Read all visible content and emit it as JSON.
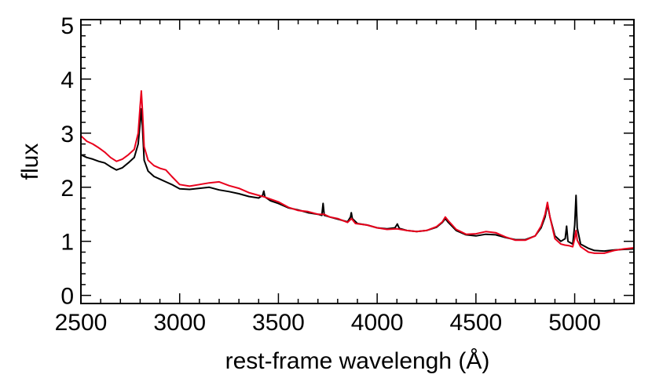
{
  "chart_data": {
    "type": "line",
    "title": "",
    "xlabel": "rest-frame wavelengh (Å)",
    "ylabel": "flux",
    "xlim": [
      2500,
      5300
    ],
    "ylim": [
      -0.15,
      5.1
    ],
    "xticks": [
      2500,
      3000,
      3500,
      4000,
      4500,
      5000
    ],
    "yticks": [
      0,
      1,
      2,
      3,
      4,
      5
    ],
    "x_minor_step": 100,
    "y_minor_step": 0.2,
    "grid": false,
    "legend": "none",
    "series": [
      {
        "name": "black spectrum",
        "color": "#000000",
        "points": [
          [
            2500,
            2.6
          ],
          [
            2530,
            2.55
          ],
          [
            2560,
            2.52
          ],
          [
            2590,
            2.48
          ],
          [
            2620,
            2.45
          ],
          [
            2650,
            2.38
          ],
          [
            2680,
            2.32
          ],
          [
            2710,
            2.36
          ],
          [
            2740,
            2.45
          ],
          [
            2770,
            2.55
          ],
          [
            2790,
            2.8
          ],
          [
            2800,
            3.2
          ],
          [
            2806,
            3.45
          ],
          [
            2812,
            3.1
          ],
          [
            2820,
            2.5
          ],
          [
            2840,
            2.3
          ],
          [
            2870,
            2.2
          ],
          [
            2900,
            2.15
          ],
          [
            2930,
            2.1
          ],
          [
            2960,
            2.05
          ],
          [
            3000,
            1.97
          ],
          [
            3050,
            1.96
          ],
          [
            3100,
            1.98
          ],
          [
            3150,
            2.0
          ],
          [
            3200,
            1.95
          ],
          [
            3250,
            1.92
          ],
          [
            3300,
            1.88
          ],
          [
            3350,
            1.83
          ],
          [
            3400,
            1.8
          ],
          [
            3420,
            1.85
          ],
          [
            3426,
            1.93
          ],
          [
            3432,
            1.82
          ],
          [
            3460,
            1.75
          ],
          [
            3500,
            1.7
          ],
          [
            3550,
            1.62
          ],
          [
            3600,
            1.58
          ],
          [
            3650,
            1.53
          ],
          [
            3700,
            1.5
          ],
          [
            3720,
            1.48
          ],
          [
            3726,
            1.7
          ],
          [
            3732,
            1.48
          ],
          [
            3760,
            1.45
          ],
          [
            3800,
            1.41
          ],
          [
            3850,
            1.36
          ],
          [
            3865,
            1.45
          ],
          [
            3869,
            1.53
          ],
          [
            3874,
            1.42
          ],
          [
            3900,
            1.33
          ],
          [
            3950,
            1.3
          ],
          [
            4000,
            1.25
          ],
          [
            4050,
            1.23
          ],
          [
            4090,
            1.25
          ],
          [
            4102,
            1.32
          ],
          [
            4112,
            1.24
          ],
          [
            4150,
            1.2
          ],
          [
            4200,
            1.18
          ],
          [
            4250,
            1.2
          ],
          [
            4300,
            1.26
          ],
          [
            4330,
            1.35
          ],
          [
            4345,
            1.42
          ],
          [
            4360,
            1.35
          ],
          [
            4400,
            1.2
          ],
          [
            4450,
            1.12
          ],
          [
            4500,
            1.1
          ],
          [
            4550,
            1.13
          ],
          [
            4600,
            1.12
          ],
          [
            4650,
            1.07
          ],
          [
            4700,
            1.03
          ],
          [
            4750,
            1.03
          ],
          [
            4800,
            1.1
          ],
          [
            4830,
            1.25
          ],
          [
            4850,
            1.45
          ],
          [
            4862,
            1.68
          ],
          [
            4875,
            1.45
          ],
          [
            4900,
            1.1
          ],
          [
            4930,
            1.0
          ],
          [
            4952,
            1.05
          ],
          [
            4959,
            1.28
          ],
          [
            4966,
            1.0
          ],
          [
            4990,
            0.95
          ],
          [
            5000,
            1.3
          ],
          [
            5007,
            1.85
          ],
          [
            5013,
            1.25
          ],
          [
            5030,
            0.95
          ],
          [
            5070,
            0.87
          ],
          [
            5100,
            0.83
          ],
          [
            5150,
            0.82
          ],
          [
            5200,
            0.84
          ],
          [
            5250,
            0.85
          ],
          [
            5300,
            0.86
          ]
        ]
      },
      {
        "name": "red spectrum",
        "color": "#e8001c",
        "points": [
          [
            2500,
            2.95
          ],
          [
            2530,
            2.85
          ],
          [
            2560,
            2.8
          ],
          [
            2590,
            2.73
          ],
          [
            2620,
            2.65
          ],
          [
            2650,
            2.55
          ],
          [
            2680,
            2.48
          ],
          [
            2710,
            2.52
          ],
          [
            2740,
            2.6
          ],
          [
            2770,
            2.7
          ],
          [
            2790,
            3.0
          ],
          [
            2800,
            3.5
          ],
          [
            2806,
            3.78
          ],
          [
            2812,
            3.4
          ],
          [
            2820,
            2.75
          ],
          [
            2840,
            2.5
          ],
          [
            2870,
            2.4
          ],
          [
            2900,
            2.35
          ],
          [
            2930,
            2.32
          ],
          [
            2960,
            2.2
          ],
          [
            3000,
            2.05
          ],
          [
            3050,
            2.02
          ],
          [
            3100,
            2.05
          ],
          [
            3150,
            2.08
          ],
          [
            3200,
            2.1
          ],
          [
            3250,
            2.03
          ],
          [
            3300,
            1.98
          ],
          [
            3350,
            1.9
          ],
          [
            3400,
            1.85
          ],
          [
            3430,
            1.82
          ],
          [
            3460,
            1.78
          ],
          [
            3500,
            1.73
          ],
          [
            3550,
            1.63
          ],
          [
            3600,
            1.57
          ],
          [
            3650,
            1.55
          ],
          [
            3700,
            1.5
          ],
          [
            3730,
            1.5
          ],
          [
            3760,
            1.45
          ],
          [
            3800,
            1.42
          ],
          [
            3850,
            1.35
          ],
          [
            3870,
            1.42
          ],
          [
            3890,
            1.33
          ],
          [
            3950,
            1.3
          ],
          [
            4000,
            1.25
          ],
          [
            4050,
            1.22
          ],
          [
            4100,
            1.23
          ],
          [
            4150,
            1.2
          ],
          [
            4200,
            1.18
          ],
          [
            4250,
            1.2
          ],
          [
            4300,
            1.27
          ],
          [
            4330,
            1.36
          ],
          [
            4345,
            1.45
          ],
          [
            4360,
            1.38
          ],
          [
            4400,
            1.22
          ],
          [
            4450,
            1.13
          ],
          [
            4500,
            1.14
          ],
          [
            4550,
            1.18
          ],
          [
            4600,
            1.16
          ],
          [
            4650,
            1.08
          ],
          [
            4700,
            1.02
          ],
          [
            4750,
            1.02
          ],
          [
            4800,
            1.1
          ],
          [
            4830,
            1.28
          ],
          [
            4850,
            1.5
          ],
          [
            4862,
            1.72
          ],
          [
            4875,
            1.45
          ],
          [
            4900,
            1.05
          ],
          [
            4930,
            0.95
          ],
          [
            4950,
            0.93
          ],
          [
            4970,
            0.92
          ],
          [
            4990,
            0.9
          ],
          [
            5000,
            1.05
          ],
          [
            5007,
            1.2
          ],
          [
            5013,
            1.02
          ],
          [
            5030,
            0.9
          ],
          [
            5070,
            0.8
          ],
          [
            5100,
            0.78
          ],
          [
            5150,
            0.78
          ],
          [
            5200,
            0.83
          ],
          [
            5250,
            0.86
          ],
          [
            5300,
            0.88
          ]
        ]
      }
    ]
  }
}
